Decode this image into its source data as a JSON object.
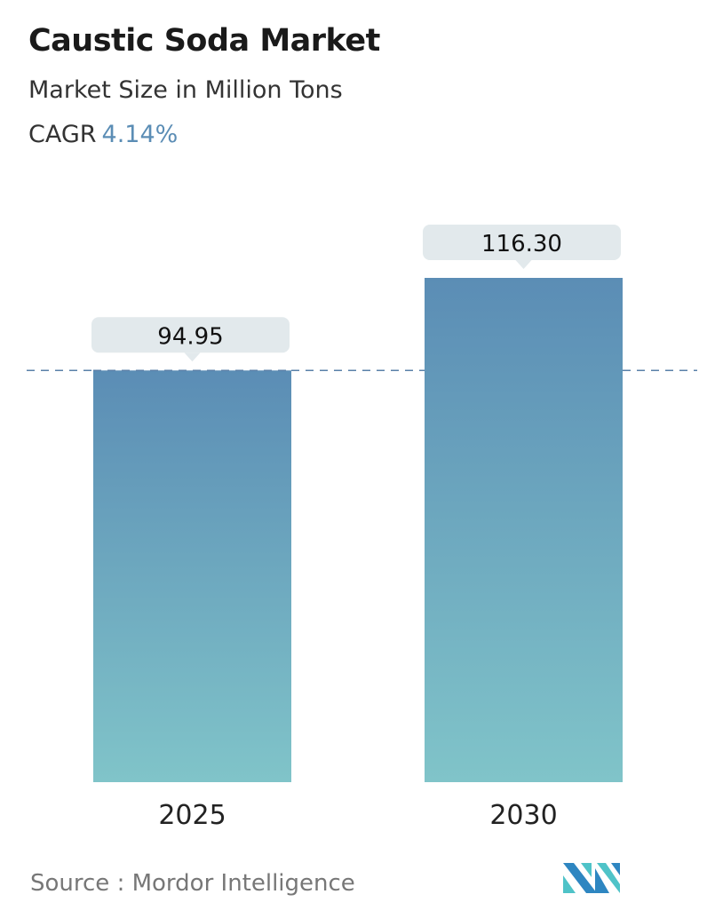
{
  "header": {
    "title": "Caustic Soda Market",
    "subtitle": "Market Size in Million Tons",
    "cagr_label": "CAGR",
    "cagr_value": "4.14%"
  },
  "chart_data": {
    "type": "bar",
    "categories": [
      "2025",
      "2030"
    ],
    "values": [
      94.95,
      116.3
    ],
    "value_labels": [
      "94.95",
      "116.30"
    ],
    "title": "Caustic Soda Market",
    "ylabel": "Market Size in Million Tons",
    "ylim": [
      0,
      116.3
    ],
    "grid": false,
    "reference_line": 94.95,
    "colors": {
      "bar_top": "#5b8db5",
      "bar_bottom": "#80c4c9",
      "label_bg": "#e2e9ec",
      "reference_line": "#5a80a8",
      "accent": "#5b8db5"
    }
  },
  "footer": {
    "source": "Source :  Mordor Intelligence",
    "logo": "Mordor Intelligence"
  }
}
